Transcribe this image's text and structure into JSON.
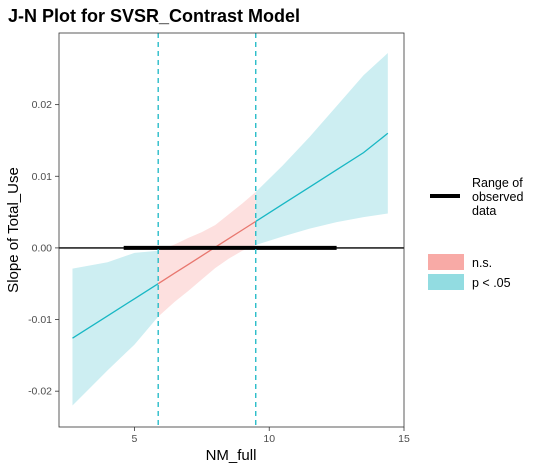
{
  "chart_data": {
    "type": "line",
    "title": "J-N Plot for SVSR_Contrast Model",
    "xlabel": "NM_full",
    "ylabel": "Slope of Total_Use",
    "xlim": [
      2.2,
      15.0
    ],
    "ylim": [
      -0.025,
      0.03
    ],
    "x_ticks": [
      5,
      10,
      15
    ],
    "y_ticks": [
      -0.02,
      -0.01,
      0.0,
      0.01,
      0.02
    ],
    "y_tick_labels": [
      "-0.02",
      "-0.01",
      "0.00",
      "0.01",
      "0.02"
    ],
    "grid": false,
    "zero_line": 0,
    "x": [
      2.7,
      4.0,
      5.0,
      5.88,
      6.5,
      7.0,
      7.5,
      8.0,
      8.5,
      9.0,
      9.5,
      10.5,
      11.5,
      12.5,
      13.5,
      14.4
    ],
    "estimate": [
      -0.0126,
      -0.0095,
      -0.0071,
      -0.005,
      -0.0035,
      -0.0023,
      -0.0011,
      0.0001,
      0.0013,
      0.0025,
      0.0037,
      0.0061,
      0.0085,
      0.0109,
      0.0133,
      0.016
    ],
    "ci_lower": [
      -0.022,
      -0.0171,
      -0.0135,
      -0.0096,
      -0.0075,
      -0.006,
      -0.0044,
      -0.0028,
      -0.0015,
      -0.0004,
      0.0004,
      0.0016,
      0.0027,
      0.0036,
      0.0043,
      0.0048
    ],
    "ci_upper": [
      -0.0029,
      -0.002,
      -0.0007,
      -0.0004,
      0.0005,
      0.0014,
      0.0022,
      0.0032,
      0.0047,
      0.0062,
      0.0078,
      0.0115,
      0.0155,
      0.0198,
      0.0241,
      0.0272
    ],
    "jn_bounds": [
      5.88,
      9.5
    ],
    "observed_range": [
      4.6,
      12.5
    ],
    "colors": {
      "significant_line": "#18b7c4",
      "significant_band": "#cdeef2",
      "ns_line": "#e8776f",
      "ns_band": "#fde0df",
      "bounds": "#18b7c4",
      "axis_line": "#000000"
    },
    "legend": {
      "placement": "right",
      "range_label": [
        "Range of",
        "observed",
        "data"
      ],
      "ns_label": "n.s.",
      "sig_label": "p < .05",
      "ns_swatch": "#f8aaa6",
      "sig_swatch": "#92dce1"
    }
  }
}
